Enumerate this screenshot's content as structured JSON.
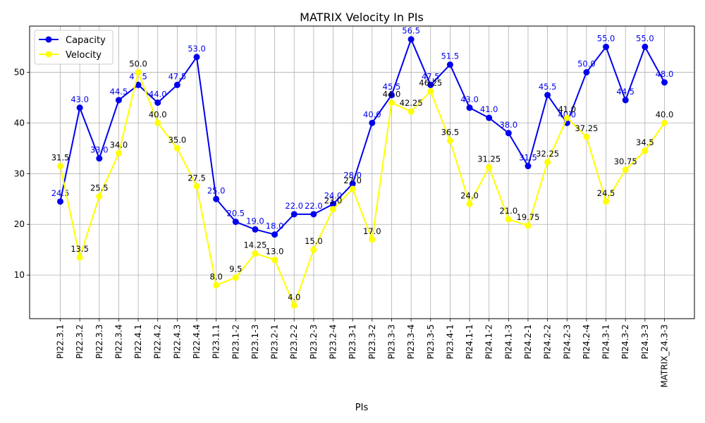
{
  "chart_data": {
    "type": "line",
    "title": "MATRIX Velocity In PIs",
    "xlabel": "PIs",
    "ylabel": "",
    "ylim": [
      1.4,
      59.1
    ],
    "yticks": [
      10,
      20,
      30,
      40,
      50
    ],
    "grid": true,
    "legend_position": "upper-left",
    "categories": [
      "PI22.3.1",
      "PI22.3.2",
      "PI22.3.3",
      "PI22.3.4",
      "PI22.4.1",
      "PI22.4.2",
      "PI22.4.3",
      "PI22.4.4",
      "PI23.1.1",
      "PI23.1-2",
      "PI23.1-3",
      "PI23.2-1",
      "PI23.2-2",
      "PI23.2-3",
      "PI23.2-4",
      "PI23.3-1",
      "PI23.3-2",
      "PI23.3-3",
      "PI23.3-4",
      "PI23.3-5",
      "PI23.4-1",
      "PI24.1-1",
      "PI24.1-2",
      "PI24.1-3",
      "PI24.2-1",
      "PI24.2-2",
      "PI24.2-3",
      "PI24.2-4",
      "PI24.3-1",
      "PI24.3-2",
      "PI24.3-3",
      "MATRIX_24.3-3"
    ],
    "series": [
      {
        "name": "Capacity",
        "color": "#0000ee",
        "values": [
          24.5,
          43.0,
          33.0,
          44.5,
          47.5,
          44.0,
          47.5,
          53.0,
          25.0,
          20.5,
          19.0,
          18.0,
          22.0,
          22.0,
          24.0,
          28.0,
          40.0,
          45.5,
          56.5,
          47.5,
          51.5,
          43.0,
          41.0,
          38.0,
          31.5,
          45.5,
          40.0,
          50.0,
          55.0,
          44.5,
          55.0,
          48.0
        ],
        "labels": [
          "24.5",
          "43.0",
          "33.0",
          "44.5",
          "47.5",
          "44.0",
          "47.5",
          "53.0",
          "25.0",
          "20.5",
          "19.0",
          "18.0",
          "22.0",
          "22.0",
          "24.0",
          "28.0",
          "40.0",
          "45.5",
          "56.5",
          "47.5",
          "51.5",
          "43.0",
          "41.0",
          "38.0",
          "31.5",
          "45.5",
          "40.0",
          "50.0",
          "55.0",
          "44.5",
          "55.0",
          "48.0"
        ]
      },
      {
        "name": "Velocity",
        "color": "#ffff00",
        "values": [
          31.5,
          13.5,
          25.5,
          34.0,
          50.0,
          40.0,
          35.0,
          27.5,
          8.0,
          9.5,
          14.25,
          13.0,
          4.0,
          15.0,
          23.0,
          27.0,
          17.0,
          44.0,
          42.25,
          46.25,
          36.5,
          24.0,
          31.25,
          21.0,
          19.75,
          32.25,
          41.0,
          37.25,
          24.5,
          30.75,
          34.5,
          40.0
        ],
        "labels": [
          "31.5",
          "13.5",
          "25.5",
          "34.0",
          "50.0",
          "40.0",
          "35.0",
          "27.5",
          "8.0",
          "9.5",
          "14.25",
          "13.0",
          "4.0",
          "15.0",
          "23.0",
          "27.0",
          "17.0",
          "44.0",
          "42.25",
          "46.25",
          "36.5",
          "24.0",
          "31.25",
          "21.0",
          "19.75",
          "32.25",
          "41.0",
          "37.25",
          "24.5",
          "30.75",
          "34.5",
          "40.0"
        ]
      }
    ]
  }
}
